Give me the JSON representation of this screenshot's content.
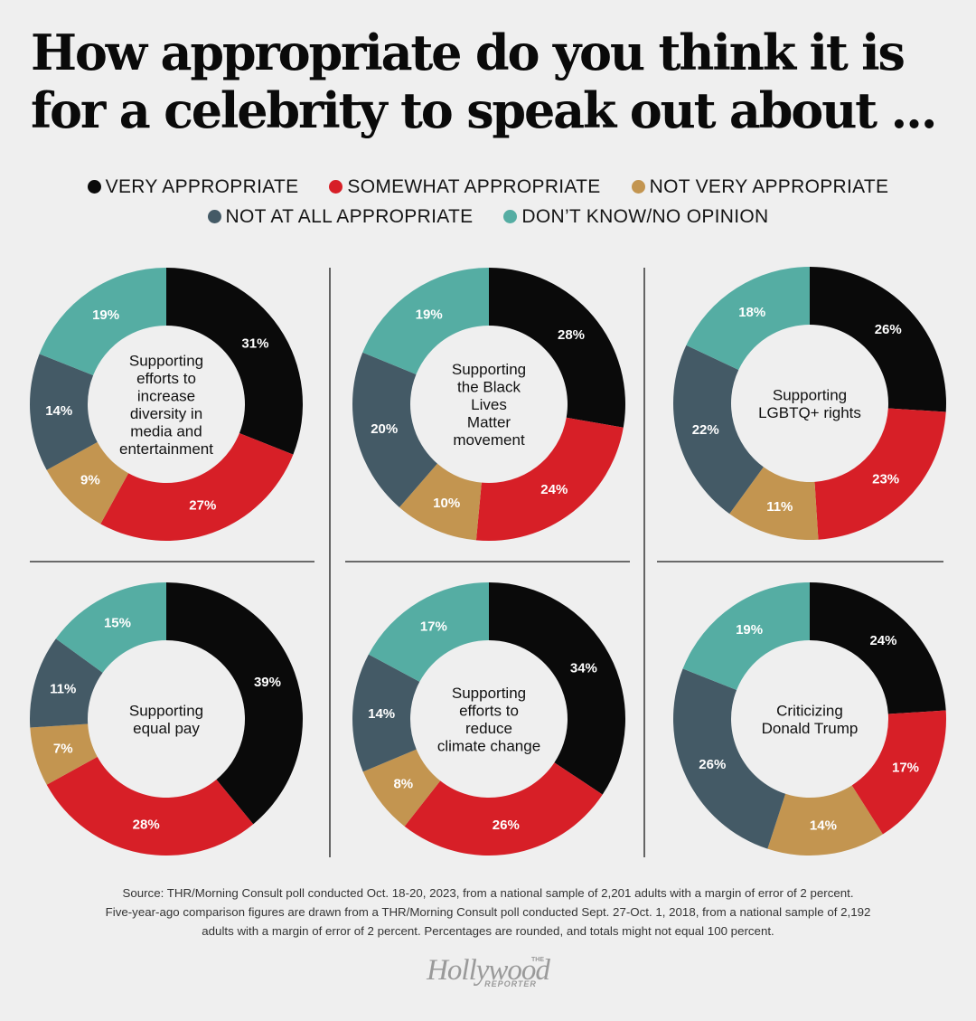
{
  "title": "How appropriate do you think it is for a celebrity to speak out about ...",
  "legend": {
    "items": [
      {
        "label": "VERY APPROPRIATE",
        "color": "#0a0a0a"
      },
      {
        "label": "SOMEWHAT APPROPRIATE",
        "color": "#d71f27"
      },
      {
        "label": "NOT VERY APPROPRIATE",
        "color": "#c39550"
      },
      {
        "label": "NOT AT ALL APPROPRIATE",
        "color": "#445a66"
      },
      {
        "label": "DON’T KNOW/NO OPINION",
        "color": "#55ada3"
      }
    ]
  },
  "chart_data": [
    {
      "type": "pie",
      "title": "Supporting efforts to increase diversity in media and entertainment",
      "center_lines": [
        "Supporting",
        "efforts to",
        "increase",
        "diversity in",
        "media and",
        "entertainment"
      ],
      "categories": [
        "VERY APPROPRIATE",
        "SOMEWHAT APPROPRIATE",
        "NOT VERY APPROPRIATE",
        "NOT AT ALL APPROPRIATE",
        "DON’T KNOW/NO OPINION"
      ],
      "values": [
        31,
        27,
        9,
        14,
        19
      ],
      "labels": [
        "31%",
        "27%",
        "9%",
        "14%",
        "19%"
      ]
    },
    {
      "type": "pie",
      "title": "Supporting the Black Lives Matter movement",
      "center_lines": [
        "Supporting",
        "the Black",
        "Lives",
        "Matter",
        "movement"
      ],
      "categories": [
        "VERY APPROPRIATE",
        "SOMEWHAT APPROPRIATE",
        "NOT VERY APPROPRIATE",
        "NOT AT ALL APPROPRIATE",
        "DON’T KNOW/NO OPINION"
      ],
      "values": [
        28,
        24,
        10,
        20,
        19
      ],
      "labels": [
        "28%",
        "24%",
        "10%",
        "20%",
        "19%"
      ]
    },
    {
      "type": "pie",
      "title": "Supporting LGBTQ+ rights",
      "center_lines": [
        "Supporting",
        "LGBTQ+ rights"
      ],
      "categories": [
        "VERY APPROPRIATE",
        "SOMEWHAT APPROPRIATE",
        "NOT VERY APPROPRIATE",
        "NOT AT ALL APPROPRIATE",
        "DON’T KNOW/NO OPINION"
      ],
      "values": [
        26,
        23,
        11,
        22,
        18
      ],
      "labels": [
        "26%",
        "23%",
        "11%",
        "22%",
        "18%"
      ]
    },
    {
      "type": "pie",
      "title": "Supporting equal pay",
      "center_lines": [
        "Supporting",
        "equal pay"
      ],
      "categories": [
        "VERY APPROPRIATE",
        "SOMEWHAT APPROPRIATE",
        "NOT VERY APPROPRIATE",
        "NOT AT ALL APPROPRIATE",
        "DON’T KNOW/NO OPINION"
      ],
      "values": [
        39,
        28,
        7,
        11,
        15
      ],
      "labels": [
        "39%",
        "28%",
        "7%",
        "11%",
        "15%"
      ]
    },
    {
      "type": "pie",
      "title": "Supporting efforts to reduce climate change",
      "center_lines": [
        "Supporting",
        "efforts to",
        "reduce",
        "climate change"
      ],
      "categories": [
        "VERY APPROPRIATE",
        "SOMEWHAT APPROPRIATE",
        "NOT VERY APPROPRIATE",
        "NOT AT ALL APPROPRIATE",
        "DON’T KNOW/NO OPINION"
      ],
      "values": [
        34,
        26,
        8,
        14,
        17
      ],
      "labels": [
        "34%",
        "26%",
        "8%",
        "14%",
        "17%"
      ]
    },
    {
      "type": "pie",
      "title": "Criticizing Donald Trump",
      "center_lines": [
        "Criticizing",
        "Donald Trump"
      ],
      "categories": [
        "VERY APPROPRIATE",
        "SOMEWHAT APPROPRIATE",
        "NOT VERY APPROPRIATE",
        "NOT AT ALL APPROPRIATE",
        "DON’T KNOW/NO OPINION"
      ],
      "values": [
        24,
        17,
        14,
        26,
        19
      ],
      "labels": [
        "24%",
        "17%",
        "14%",
        "26%",
        "19%"
      ]
    }
  ],
  "source": {
    "line1": "Source: THR/Morning Consult poll conducted Oct. 18-20, 2023, from a national sample of 2,201 adults with a margin of error of 2 percent.",
    "line2": "Five-year-ago comparison figures are drawn from a THR/Morning Consult poll conducted Sept. 27-Oct. 1, 2018, from a national sample of 2,192",
    "line3": "adults with a margin of error of 2 percent. Percentages are rounded, and totals might not equal 100 percent."
  },
  "logo": {
    "the": "THE",
    "main": "Hollywood",
    "sub": "REPORTER"
  }
}
